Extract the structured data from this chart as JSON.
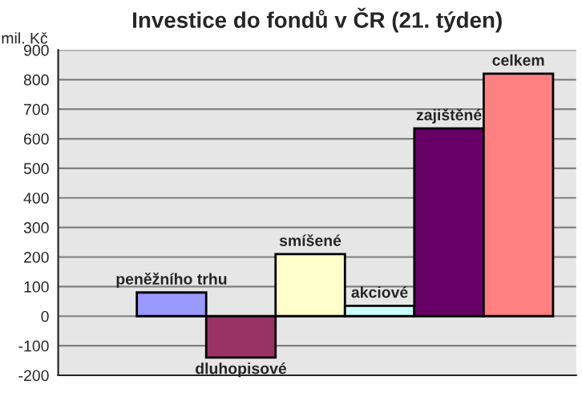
{
  "chart_data": {
    "type": "bar",
    "title": "Investice do fondů v ČR (21. týden)",
    "ylabel": "mil. Kč",
    "categories": [
      null
    ],
    "series": [
      {
        "name": "peněžního trhu",
        "color": "#9999ff",
        "values": [
          80
        ]
      },
      {
        "name": "dluhopisové",
        "color": "#993366",
        "values": [
          -140
        ]
      },
      {
        "name": "smíšené",
        "color": "#ffffcc",
        "values": [
          210
        ]
      },
      {
        "name": "akciové",
        "color": "#ccffff",
        "values": [
          35
        ]
      },
      {
        "name": "zajištěné",
        "color": "#660066",
        "values": [
          635
        ]
      },
      {
        "name": "celkem",
        "color": "#ff8080",
        "values": [
          820
        ]
      }
    ],
    "ylim": [
      -200,
      900
    ],
    "yticks": [
      -200,
      -100,
      0,
      100,
      200,
      300,
      400,
      500,
      600,
      700,
      800,
      900
    ],
    "grid": "y",
    "tick_labels": "y"
  }
}
